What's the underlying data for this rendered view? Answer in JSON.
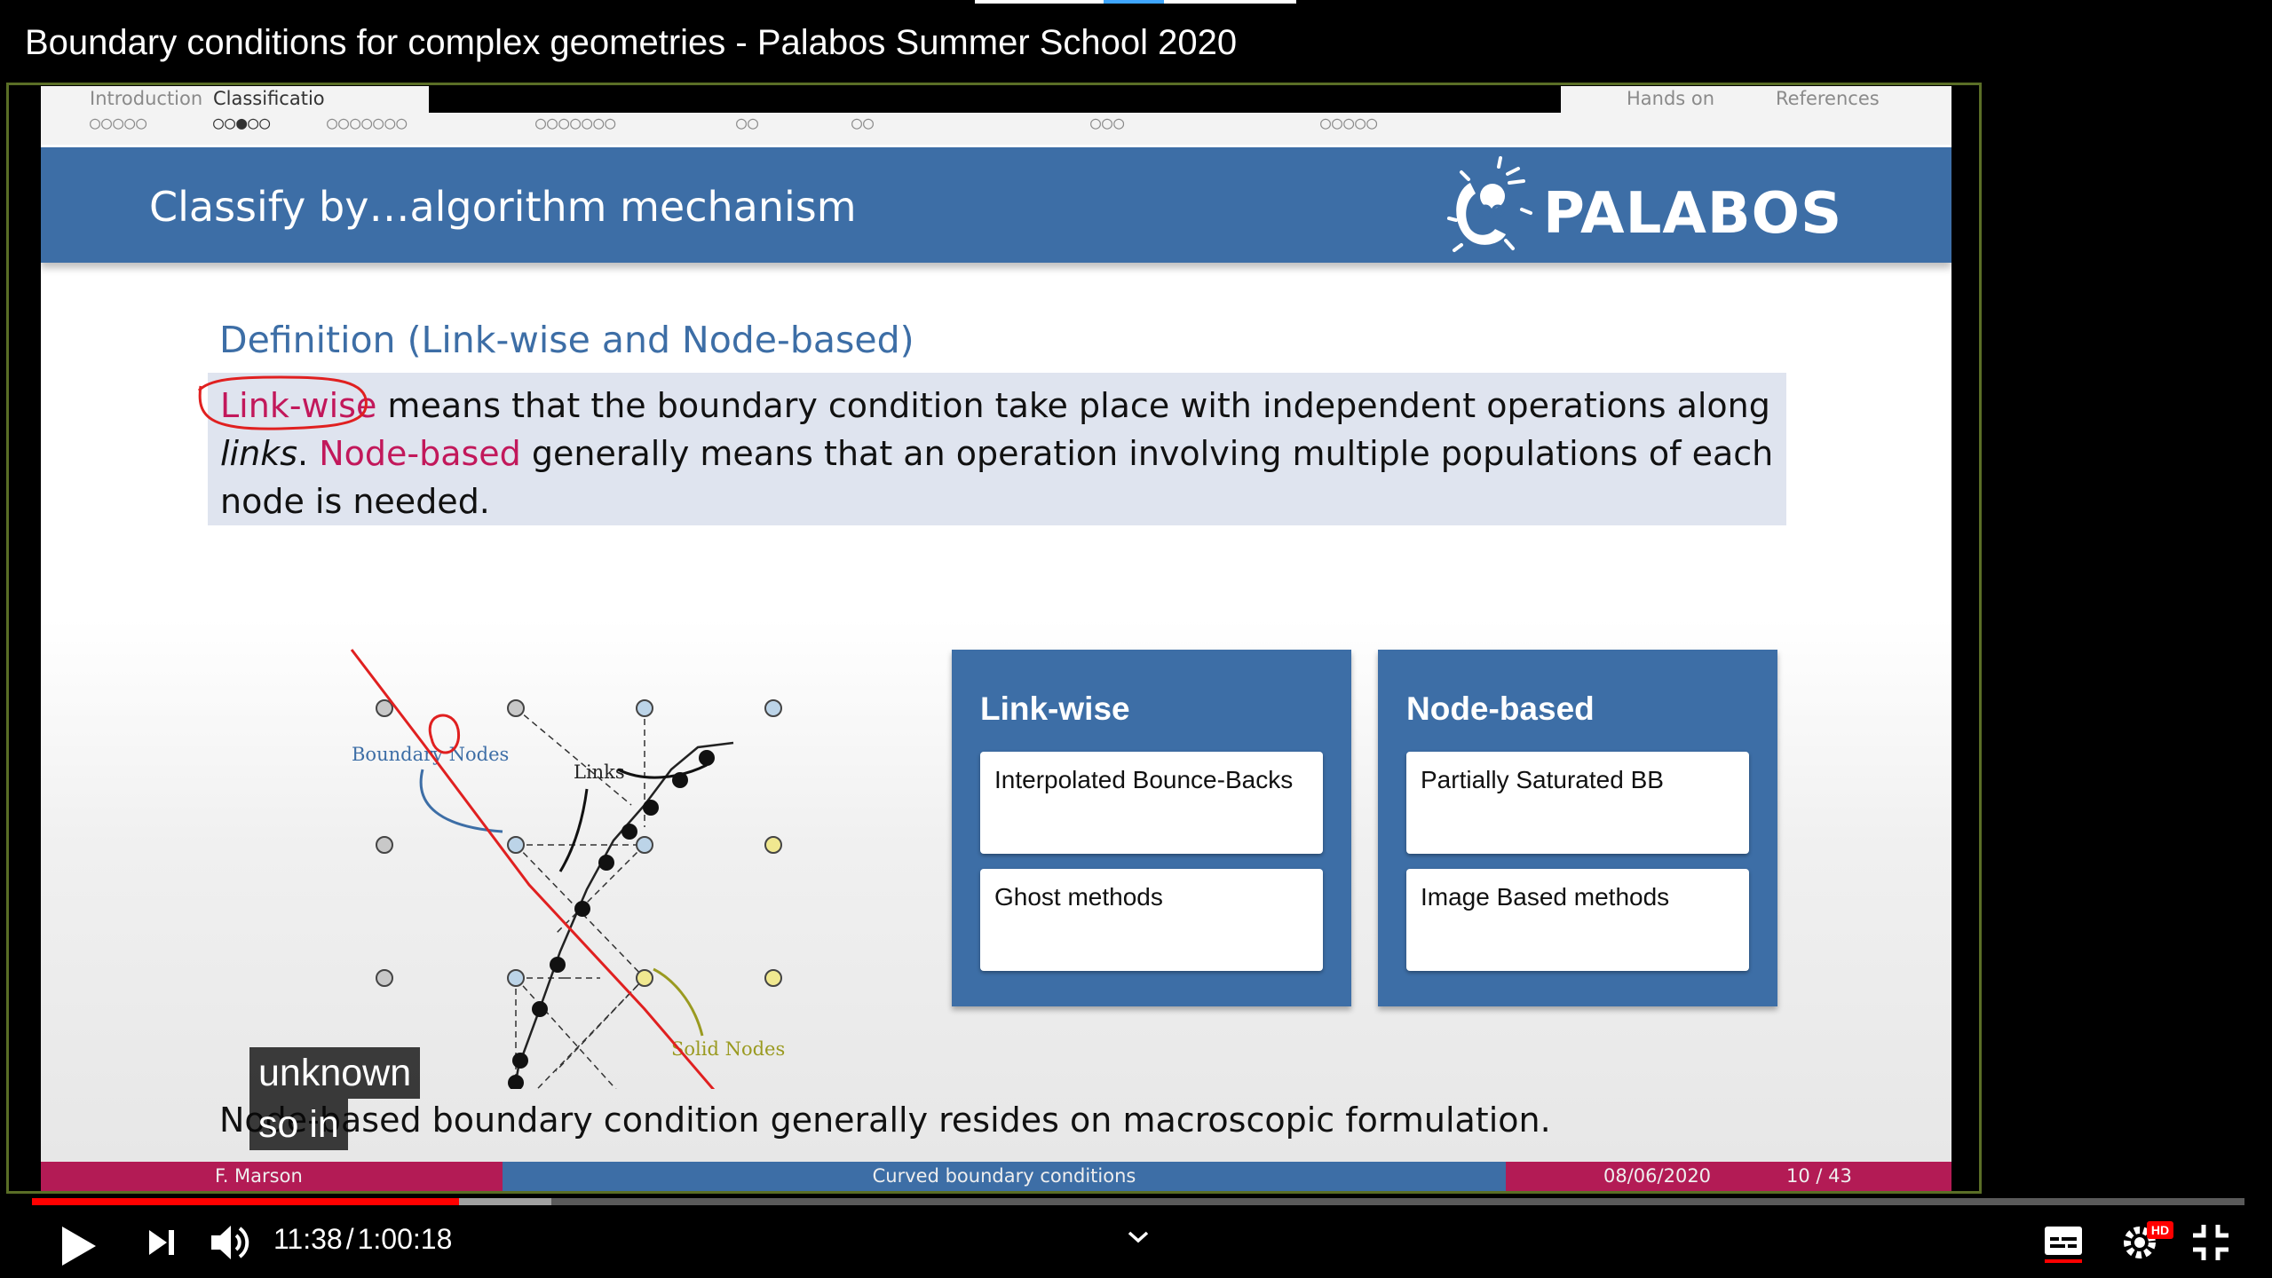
{
  "video": {
    "title": "Boundary conditions for complex geometries - Palabos Summer School 2020"
  },
  "slide": {
    "nav": [
      {
        "label": "Introduction",
        "dots": "○○○○○",
        "active": false
      },
      {
        "label": "Classificatio",
        "dots": "○○●○○",
        "active": true
      },
      {
        "label": "",
        "dots": "○○○○○○○"
      },
      {
        "label": "",
        "dots": "○○○○○○○"
      },
      {
        "label": "",
        "dots": "○○"
      },
      {
        "label": "",
        "dots": "○○"
      },
      {
        "label": "",
        "dots": "○○○"
      },
      {
        "label": "",
        "dots": "○○○○○"
      },
      {
        "label": "Hands on",
        "dots": ""
      },
      {
        "label": "References",
        "dots": ""
      }
    ],
    "title": "Classify by…algorithm mechanism",
    "logo_text": "PALABOS",
    "definition": {
      "title": "Definition (Link-wise and Node-based)",
      "term1": "Link-wise",
      "part1": " means that the boundary condition take place with independent operations along ",
      "italic": "links",
      "part2": ". ",
      "term2": "Node-based",
      "part3": " generally means that an operation involving multiple populations of each node is needed."
    },
    "diagram": {
      "boundary_nodes_label": "Boundary Nodes",
      "links_label": "Links",
      "solid_nodes_label": "Solid Nodes"
    },
    "categories": [
      {
        "title": "Link-wise",
        "items": [
          "Interpolated Bounce-Backs",
          "Ghost methods"
        ]
      },
      {
        "title": "Node-based",
        "items": [
          "Partially Saturated BB",
          "Image Based methods"
        ]
      }
    ],
    "bottom_text": "Node-based boundary condition generally resides on macroscopic formulation.",
    "footer": {
      "author": "F. Marson",
      "topic": "Curved boundary conditions",
      "date": "08/06/2020",
      "page": "10 / 43"
    }
  },
  "captions": [
    "unknown",
    "so in"
  ],
  "player": {
    "current_time": "11:38",
    "separator": "/",
    "duration": "1:00:18",
    "progress_fraction": 0.193,
    "hd_badge": "HD",
    "icons": [
      "play-icon",
      "next-icon",
      "volume-icon",
      "chevron-down-icon",
      "subtitles-icon",
      "settings-icon",
      "exit-fullscreen-icon"
    ]
  },
  "colors": {
    "slide_blue": "#3d6ea6",
    "slide_magenta": "#c2185b",
    "progress_red": "#ff0000",
    "frame_green": "#5a6e26"
  }
}
